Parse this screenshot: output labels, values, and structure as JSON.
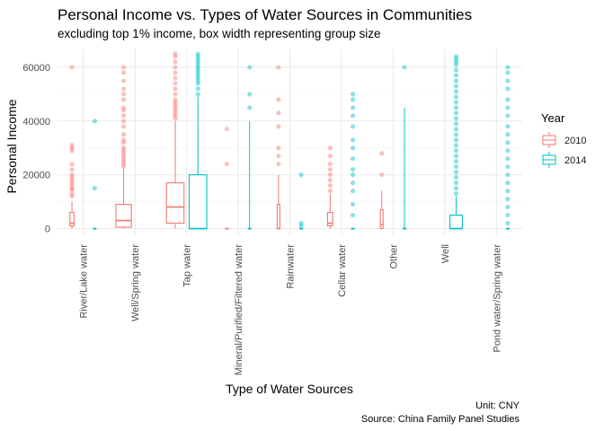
{
  "chart_data": {
    "type": "box",
    "title": "Personal Income vs. Types of Water Sources in Communities",
    "subtitle": "excluding top 1% income, box width representing group size",
    "xlabel": "Type of Water Sources",
    "ylabel": "Personal Income",
    "caption_lines": [
      "Unit: CNY",
      "Source: China Family Panel Studies"
    ],
    "ylim": [
      -2500,
      67000
    ],
    "y_ticks": [
      0,
      20000,
      40000,
      60000
    ],
    "y_tick_labels": [
      "0",
      "20000",
      "40000",
      "60000"
    ],
    "categories": [
      "River/Lake water",
      "Well/Spring water",
      "Tap water",
      "Mineral/Purified/Filtered water",
      "Rainwater",
      "Cellar water",
      "Other",
      "Well",
      "Pond water/Spring water"
    ],
    "legend": {
      "title": "Year",
      "position": "right",
      "entries": [
        {
          "label": "2010",
          "color": "#F8766D"
        },
        {
          "label": "2014",
          "color": "#00BFC4"
        }
      ]
    },
    "grid": true,
    "series": [
      {
        "name": "2010",
        "color": "#F8766D",
        "boxes": [
          {
            "cat": 0,
            "min": 0,
            "q1": 1000,
            "median": 2000,
            "q3": 6000,
            "max": 10000,
            "width": 0.08,
            "outliers": [
              12000,
              13000,
              14500,
              15000,
              16000,
              17000,
              18000,
              19000,
              20000,
              22000,
              24000,
              29000,
              30000,
              31000,
              60000
            ]
          },
          {
            "cat": 1,
            "min": 0,
            "q1": 500,
            "median": 3000,
            "q3": 9000,
            "max": 22000,
            "width": 0.3,
            "outliers": [
              23000,
              24000,
              25000,
              26000,
              27000,
              28000,
              29000,
              30000,
              32000,
              33000,
              35000,
              38000,
              40000,
              42000,
              44000,
              45000,
              48000,
              50000,
              52000,
              55000,
              58000,
              60000
            ]
          },
          {
            "cat": 2,
            "min": 0,
            "q1": 2000,
            "median": 8000,
            "q3": 17000,
            "max": 40000,
            "width": 0.34,
            "outliers": [
              41000,
              42000,
              43000,
              44000,
              45000,
              46000,
              47000,
              48000,
              50000,
              52000,
              54000,
              56000,
              58000,
              60000,
              62000,
              64000,
              65000
            ]
          },
          {
            "cat": 3,
            "min": 0,
            "q1": 0,
            "median": 0,
            "q3": 0,
            "max": 0,
            "width": 0.02,
            "outliers": [
              24000,
              37000
            ]
          },
          {
            "cat": 4,
            "min": 0,
            "q1": 0,
            "median": 0,
            "q3": 9000,
            "max": 20000,
            "width": 0.05,
            "outliers": [
              24000,
              27000,
              30000,
              38000,
              43000,
              48000,
              60000
            ]
          },
          {
            "cat": 5,
            "min": 0,
            "q1": 1000,
            "median": 2000,
            "q3": 6000,
            "max": 13000,
            "width": 0.1,
            "outliers": [
              14000,
              16000,
              18000,
              20000,
              22000,
              24000,
              27000,
              30000
            ]
          },
          {
            "cat": 6,
            "min": 0,
            "q1": 0,
            "median": 1500,
            "q3": 7000,
            "max": 14000,
            "width": 0.04,
            "outliers": [
              20000,
              28000
            ]
          }
        ]
      },
      {
        "name": "2014",
        "color": "#00BFC4",
        "boxes": [
          {
            "cat": 0,
            "min": 0,
            "q1": 0,
            "median": 0,
            "q3": 0,
            "max": 0,
            "width": 0.02,
            "outliers": [
              15000,
              40000
            ]
          },
          {
            "cat": 2,
            "min": 0,
            "q1": 0,
            "median": 0,
            "q3": 20000,
            "max": 49000,
            "width": 0.34,
            "outliers": [
              50000,
              52000,
              54000,
              55000,
              56000,
              57000,
              58000,
              59000,
              60000,
              61000,
              62000,
              63000,
              64000,
              65000
            ]
          },
          {
            "cat": 3,
            "min": 0,
            "q1": 0,
            "median": 0,
            "q3": 0,
            "max": 40000,
            "width": 0.02,
            "outliers": [
              45000,
              50000,
              60000
            ]
          },
          {
            "cat": 4,
            "min": 0,
            "q1": 0,
            "median": 0,
            "q3": 0,
            "max": 0,
            "width": 0.02,
            "outliers": [
              1000,
              2000,
              20000
            ]
          },
          {
            "cat": 5,
            "min": 0,
            "q1": 0,
            "median": 0,
            "q3": 0,
            "max": 0,
            "width": 0.03,
            "outliers": [
              5000,
              9000,
              14000,
              17000,
              20000,
              22000,
              26000,
              30000,
              33000,
              38000,
              42000,
              45000,
              48000,
              50000
            ]
          },
          {
            "cat": 6,
            "min": 0,
            "q1": 0,
            "median": 0,
            "q3": 0,
            "max": 45000,
            "width": 0.02,
            "outliers": [
              60000
            ]
          },
          {
            "cat": 7,
            "min": 0,
            "q1": 0,
            "median": 0,
            "q3": 5000,
            "max": 12000,
            "width": 0.24,
            "outliers": [
              13000,
              15000,
              17000,
              19000,
              21000,
              23000,
              25000,
              27000,
              29000,
              31000,
              33000,
              35000,
              37000,
              39000,
              41000,
              43000,
              45000,
              47000,
              49000,
              51000,
              53000,
              55000,
              57000,
              59000,
              61000,
              62000,
              63000,
              64000
            ]
          },
          {
            "cat": 8,
            "min": 0,
            "q1": 0,
            "median": 0,
            "q3": 0,
            "max": 0,
            "width": 0.02,
            "outliers": [
              2000,
              5000,
              8000,
              11000,
              14000,
              17000,
              20000,
              23000,
              26000,
              29000,
              32000,
              35000,
              38000,
              42000,
              45000,
              48000,
              52000,
              55000,
              58000,
              60000
            ]
          }
        ]
      }
    ]
  }
}
